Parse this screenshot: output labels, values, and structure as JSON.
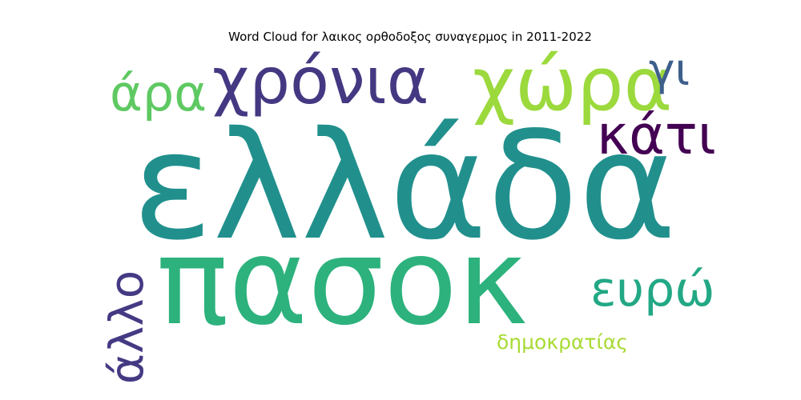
{
  "chart_data": {
    "type": "wordcloud",
    "title": "Word Cloud for λαικος ορθοδοξος συναγερμος in 2011-2022",
    "words": [
      {
        "text": "ελλάδα",
        "color": "#21908d"
      },
      {
        "text": "πασοκ",
        "color": "#2db27d"
      },
      {
        "text": "χρόνια",
        "color": "#453882"
      },
      {
        "text": "χώρα",
        "color": "#9bd93c"
      },
      {
        "text": "κάτι",
        "color": "#440154"
      },
      {
        "text": "άρα",
        "color": "#5ec962"
      },
      {
        "text": "γι",
        "color": "#3e5f8c"
      },
      {
        "text": "ευρώ",
        "color": "#22a884"
      },
      {
        "text": "άλλο",
        "color": "#443a83"
      },
      {
        "text": "δημοκρατίας",
        "color": "#a8db34"
      }
    ]
  }
}
